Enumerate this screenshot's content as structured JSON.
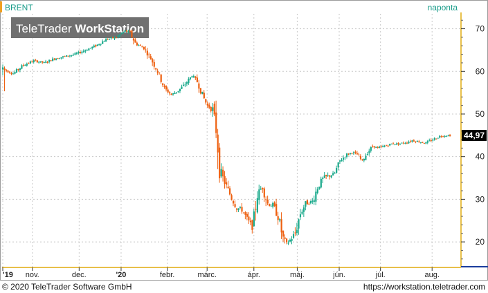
{
  "chart_data": {
    "type": "candlestick",
    "title": "BRENT",
    "period_label": "naponta",
    "watermark": {
      "part1": "TeleTrader ",
      "part2": "WorkStation"
    },
    "last_price_label": "44,97",
    "last_price": 44.97,
    "ylim": [
      14.5,
      73.5
    ],
    "y_ticks": [
      20,
      30,
      40,
      50,
      60,
      70
    ],
    "x_ticks": [
      {
        "label": "'19",
        "day": 0
      },
      {
        "label": "nov.",
        "day": 43
      },
      {
        "label": "dec.",
        "day": 111
      },
      {
        "label": "'20",
        "day": 172
      },
      {
        "label": "febr.",
        "day": 239
      },
      {
        "label": "márc.",
        "day": 297
      },
      {
        "label": "ápr.",
        "day": 365
      },
      {
        "label": "máj.",
        "day": 428
      },
      {
        "label": "jún.",
        "day": 489
      },
      {
        "label": "júl.",
        "day": 549
      },
      {
        "label": "aug.",
        "day": 624
      }
    ],
    "series": [
      {
        "day": 0,
        "close": 60.5
      },
      {
        "day": 15,
        "close": 59.5
      },
      {
        "day": 30,
        "close": 61.5
      },
      {
        "day": 45,
        "close": 62.5
      },
      {
        "day": 60,
        "close": 62.0
      },
      {
        "day": 75,
        "close": 63.0
      },
      {
        "day": 90,
        "close": 63.5
      },
      {
        "day": 105,
        "close": 64.0
      },
      {
        "day": 120,
        "close": 65.0
      },
      {
        "day": 135,
        "close": 66.0
      },
      {
        "day": 150,
        "close": 67.5
      },
      {
        "day": 165,
        "close": 68.0
      },
      {
        "day": 178,
        "close": 69.5
      },
      {
        "day": 185,
        "close": 69.0
      },
      {
        "day": 193,
        "close": 66.5
      },
      {
        "day": 205,
        "close": 65.5
      },
      {
        "day": 215,
        "close": 63.0
      },
      {
        "day": 225,
        "close": 60.0
      },
      {
        "day": 235,
        "close": 56.0
      },
      {
        "day": 245,
        "close": 54.5
      },
      {
        "day": 255,
        "close": 55.5
      },
      {
        "day": 265,
        "close": 57.0
      },
      {
        "day": 275,
        "close": 59.0
      },
      {
        "day": 283,
        "close": 57.5
      },
      {
        "day": 290,
        "close": 54.5
      },
      {
        "day": 297,
        "close": 52.0
      },
      {
        "day": 305,
        "close": 51.0
      },
      {
        "day": 311,
        "close": 45.5
      },
      {
        "day": 315,
        "close": 37.0
      },
      {
        "day": 320,
        "close": 35.0
      },
      {
        "day": 325,
        "close": 33.0
      },
      {
        "day": 332,
        "close": 30.5
      },
      {
        "day": 340,
        "close": 28.0
      },
      {
        "day": 348,
        "close": 27.5
      },
      {
        "day": 356,
        "close": 25.0
      },
      {
        "day": 363,
        "close": 23.5
      },
      {
        "day": 370,
        "close": 31.0
      },
      {
        "day": 377,
        "close": 33.0
      },
      {
        "day": 385,
        "close": 29.0
      },
      {
        "day": 393,
        "close": 28.5
      },
      {
        "day": 400,
        "close": 26.0
      },
      {
        "day": 407,
        "close": 21.0
      },
      {
        "day": 412,
        "close": 19.5
      },
      {
        "day": 418,
        "close": 20.5
      },
      {
        "day": 425,
        "close": 22.0
      },
      {
        "day": 432,
        "close": 26.5
      },
      {
        "day": 440,
        "close": 29.0
      },
      {
        "day": 450,
        "close": 29.5
      },
      {
        "day": 458,
        "close": 33.0
      },
      {
        "day": 466,
        "close": 35.0
      },
      {
        "day": 474,
        "close": 35.5
      },
      {
        "day": 482,
        "close": 36.0
      },
      {
        "day": 490,
        "close": 39.0
      },
      {
        "day": 500,
        "close": 40.5
      },
      {
        "day": 508,
        "close": 41.0
      },
      {
        "day": 515,
        "close": 40.5
      },
      {
        "day": 522,
        "close": 39.0
      },
      {
        "day": 530,
        "close": 41.0
      },
      {
        "day": 538,
        "close": 42.5
      },
      {
        "day": 545,
        "close": 42.0
      },
      {
        "day": 555,
        "close": 42.5
      },
      {
        "day": 565,
        "close": 43.0
      },
      {
        "day": 575,
        "close": 43.0
      },
      {
        "day": 585,
        "close": 43.3
      },
      {
        "day": 595,
        "close": 43.8
      },
      {
        "day": 605,
        "close": 43.5
      },
      {
        "day": 615,
        "close": 43.2
      },
      {
        "day": 625,
        "close": 44.0
      },
      {
        "day": 635,
        "close": 44.8
      },
      {
        "day": 645,
        "close": 45.0
      },
      {
        "day": 652,
        "close": 44.97
      }
    ]
  },
  "footer": {
    "copyright": "© 2020 TeleTrader Software GmbH",
    "url": "https://workstation.teletrader.com"
  },
  "colors": {
    "up": "#19a98b",
    "down": "#ee6010",
    "title": "#1a9c8a",
    "axis": "#e8c04a",
    "price_box": "#000000",
    "watermark_bg": "#707070"
  }
}
